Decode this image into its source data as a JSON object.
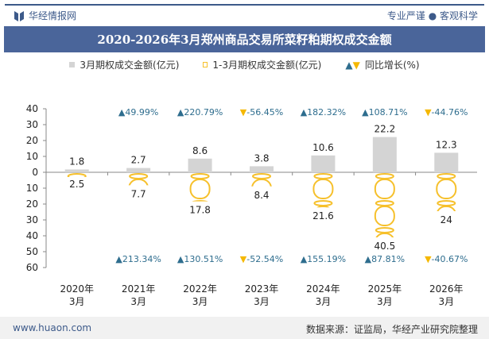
{
  "header": {
    "brand": "华经情报网",
    "slogan": "专业严谨 ● 客观科学",
    "title": "2020-2026年3月郑州商品交易所菜籽粕期权成交金额"
  },
  "legend": {
    "s1": "3月期权成交金额(亿元)",
    "s2": "1-3月期权成交金额(亿元)",
    "s3": "同比增长(%)"
  },
  "footer": {
    "website": "www.huaon.com",
    "source": "数据来源：证监局，华经产业研究院整理"
  },
  "colors": {
    "bar": "#d4d4d4",
    "gold": "#f6c02b",
    "up": "#2e6d8e",
    "down": "#f5b800",
    "title_bg": "#4a659a"
  },
  "chart_data": {
    "type": "bar",
    "categories": [
      "2020年\n3月",
      "2021年\n3月",
      "2022年\n3月",
      "2023年\n3月",
      "2024年\n3月",
      "2025年\n3月",
      "2026年\n3月"
    ],
    "ylim_top": [
      0,
      40
    ],
    "ylim_bottom": [
      0,
      60
    ],
    "yticks_top": [
      40,
      30,
      20,
      10,
      0
    ],
    "yticks_bottom": [
      10,
      20,
      30,
      40,
      50,
      60
    ],
    "series": [
      {
        "name": "3月期权成交金额(亿元)",
        "values": [
          1.8,
          2.7,
          8.6,
          3.8,
          10.6,
          22.2,
          12.3
        ],
        "direction": "up"
      },
      {
        "name": "1-3月期权成交金额(亿元)",
        "values": [
          2.5,
          7.7,
          17.8,
          8.4,
          21.6,
          40.5,
          24
        ],
        "direction": "down",
        "style": "pictogram"
      }
    ],
    "growth_march": [
      null,
      "49.99%",
      "220.79%",
      "-56.45%",
      "182.32%",
      "108.71%",
      "-44.76%"
    ],
    "growth_q1": [
      null,
      "213.34%",
      "130.51%",
      "-52.54%",
      "155.19%",
      "87.81%",
      "-40.67%"
    ]
  }
}
